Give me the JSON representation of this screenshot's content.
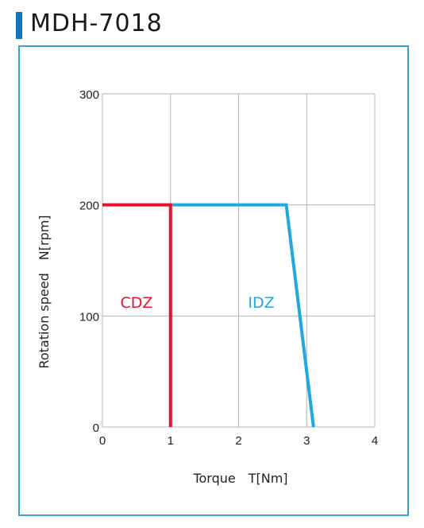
{
  "title": "MDH-7018",
  "colors": {
    "accent": "#1478be",
    "frame": "#3aa0d0",
    "CDZ": "#e8112d",
    "IDZ": "#1fa8dc",
    "grid": "#b4b4b4"
  },
  "chart_data": {
    "type": "line",
    "xlabel": "Torque　T[Nm]",
    "ylabel": "Rotation speed　N[rpm]",
    "xlim": [
      0,
      4
    ],
    "ylim": [
      0,
      300
    ],
    "xticks": [
      "0",
      "1",
      "2",
      "3",
      "4"
    ],
    "yticks": [
      "0",
      "100",
      "200",
      "300"
    ],
    "grid": true,
    "series": [
      {
        "name": "CDZ",
        "x": [
          0,
          1,
          1
        ],
        "y": [
          200,
          200,
          0
        ]
      },
      {
        "name": "IDZ",
        "x": [
          1,
          2.7,
          3.1
        ],
        "y": [
          200,
          200,
          0
        ]
      }
    ]
  }
}
